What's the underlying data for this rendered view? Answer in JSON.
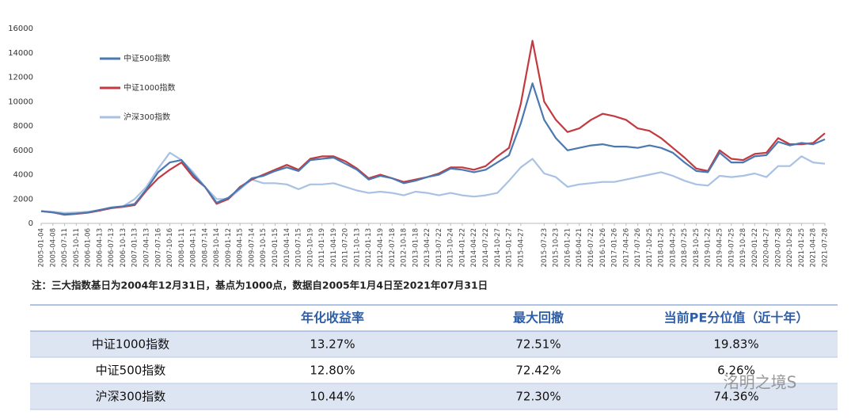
{
  "chart_data": {
    "type": "line",
    "categories": [
      "2005-01-04",
      "2005-04-08",
      "2005-07-11",
      "2005-10-11",
      "2006-01-06",
      "2006-04-13",
      "2006-07-13",
      "2006-10-13",
      "2007-01-13",
      "2007-04-13",
      "2007-07-16",
      "2007-10-16",
      "2008-01-11",
      "2008-04-11",
      "2008-07-14",
      "2008-10-14",
      "2009-01-12",
      "2009-04-15",
      "2009-07-14",
      "2009-10-15",
      "2010-01-15",
      "2010-04-14",
      "2010-07-15",
      "2010-10-19",
      "2011-01-19",
      "2011-04-19",
      "2011-07-20",
      "2011-10-13",
      "2012-01-13",
      "2012-04-19",
      "2012-07-18",
      "2012-10-18",
      "2013-01-18",
      "2013-04-22",
      "2013-07-22",
      "2013-10-24",
      "2014-01-22",
      "2014-04-22",
      "2014-07-22",
      "2014-10-27",
      "2015-01-27",
      "2015-04-27",
      null,
      "2015-07-23",
      "2015-10-23",
      "2016-01-21",
      "2016-04-21",
      "2016-07-22",
      "2016-10-26",
      "2017-01-26",
      "2017-04-26",
      "2017-07-26",
      "2017-10-25",
      "2018-01-25",
      "2018-04-25",
      "2018-07-25",
      "2018-10-25",
      "2019-01-22",
      "2019-04-25",
      "2019-07-25",
      "2019-10-28",
      "2020-01-22",
      "2020-04-27",
      "2020-07-28",
      "2020-10-29",
      "2021-01-25",
      "2021-04-28",
      "2021-07-28"
    ],
    "series": [
      {
        "name": "中证500指数",
        "color": "#4a78b0",
        "values": [
          1000,
          900,
          750,
          800,
          900,
          1100,
          1300,
          1400,
          1600,
          2800,
          4200,
          5000,
          5200,
          4000,
          3000,
          1700,
          2100,
          2900,
          3700,
          3900,
          4300,
          4600,
          4300,
          5200,
          5300,
          5400,
          4900,
          4400,
          3600,
          3900,
          3700,
          3300,
          3500,
          3800,
          4000,
          4500,
          4400,
          4200,
          4400,
          5000,
          5600,
          8200,
          11500,
          8500,
          7000,
          6000,
          6200,
          6400,
          6500,
          6300,
          6300,
          6200,
          6400,
          6200,
          5800,
          5000,
          4300,
          4200,
          5800,
          5000,
          5000,
          5500,
          5600,
          6700,
          6400,
          6600,
          6500,
          6900
        ]
      },
      {
        "name": "中证1000指数",
        "color": "#c23a40",
        "values": [
          1000,
          900,
          700,
          780,
          880,
          1050,
          1250,
          1350,
          1500,
          2700,
          3700,
          4400,
          5000,
          3800,
          3000,
          1600,
          2000,
          3000,
          3600,
          4000,
          4400,
          4800,
          4400,
          5300,
          5500,
          5500,
          5100,
          4500,
          3700,
          4000,
          3700,
          3400,
          3600,
          3800,
          4100,
          4600,
          4600,
          4400,
          4700,
          5500,
          6200,
          9800,
          15000,
          10000,
          8500,
          7500,
          7800,
          8500,
          9000,
          8800,
          8500,
          7800,
          7600,
          7000,
          6200,
          5400,
          4500,
          4300,
          6000,
          5300,
          5200,
          5700,
          5800,
          7000,
          6500,
          6500,
          6600,
          7400
        ]
      },
      {
        "name": "沪深300指数",
        "color": "#a9c1e3",
        "values": [
          1000,
          950,
          850,
          900,
          950,
          1100,
          1300,
          1400,
          2000,
          3000,
          4500,
          5800,
          5200,
          4200,
          3000,
          2000,
          2000,
          2800,
          3600,
          3300,
          3300,
          3200,
          2800,
          3200,
          3200,
          3300,
          3000,
          2700,
          2500,
          2600,
          2500,
          2300,
          2600,
          2500,
          2300,
          2500,
          2300,
          2200,
          2300,
          2500,
          3500,
          4600,
          5300,
          4100,
          3800,
          3000,
          3200,
          3300,
          3400,
          3400,
          3600,
          3800,
          4000,
          4200,
          3900,
          3500,
          3200,
          3100,
          3900,
          3800,
          3900,
          4100,
          3800,
          4700,
          4700,
          5500,
          5000,
          4900
        ]
      }
    ],
    "ylim": [
      0,
      16000
    ],
    "yticks": [
      0,
      2000,
      4000,
      6000,
      8000,
      10000,
      12000,
      14000,
      16000
    ],
    "grid": false,
    "legend_position": "upper left"
  },
  "note": "注：三大指数基日为2004年12月31日，基点为1000点，数据自2005年1月4日至2021年07月31日",
  "table": {
    "header": [
      "年化收益率",
      "最大回撤",
      "当前PE分位值（近十年）"
    ],
    "rows": [
      [
        "中证1000指数",
        "13.27%",
        "72.51%",
        "19.83%"
      ],
      [
        "中证500指数",
        "12.80%",
        "72.42%",
        "6.26%"
      ],
      [
        "沪深300指数",
        "10.44%",
        "72.30%",
        "74.36%"
      ]
    ]
  },
  "watermark": "洺明之境S"
}
